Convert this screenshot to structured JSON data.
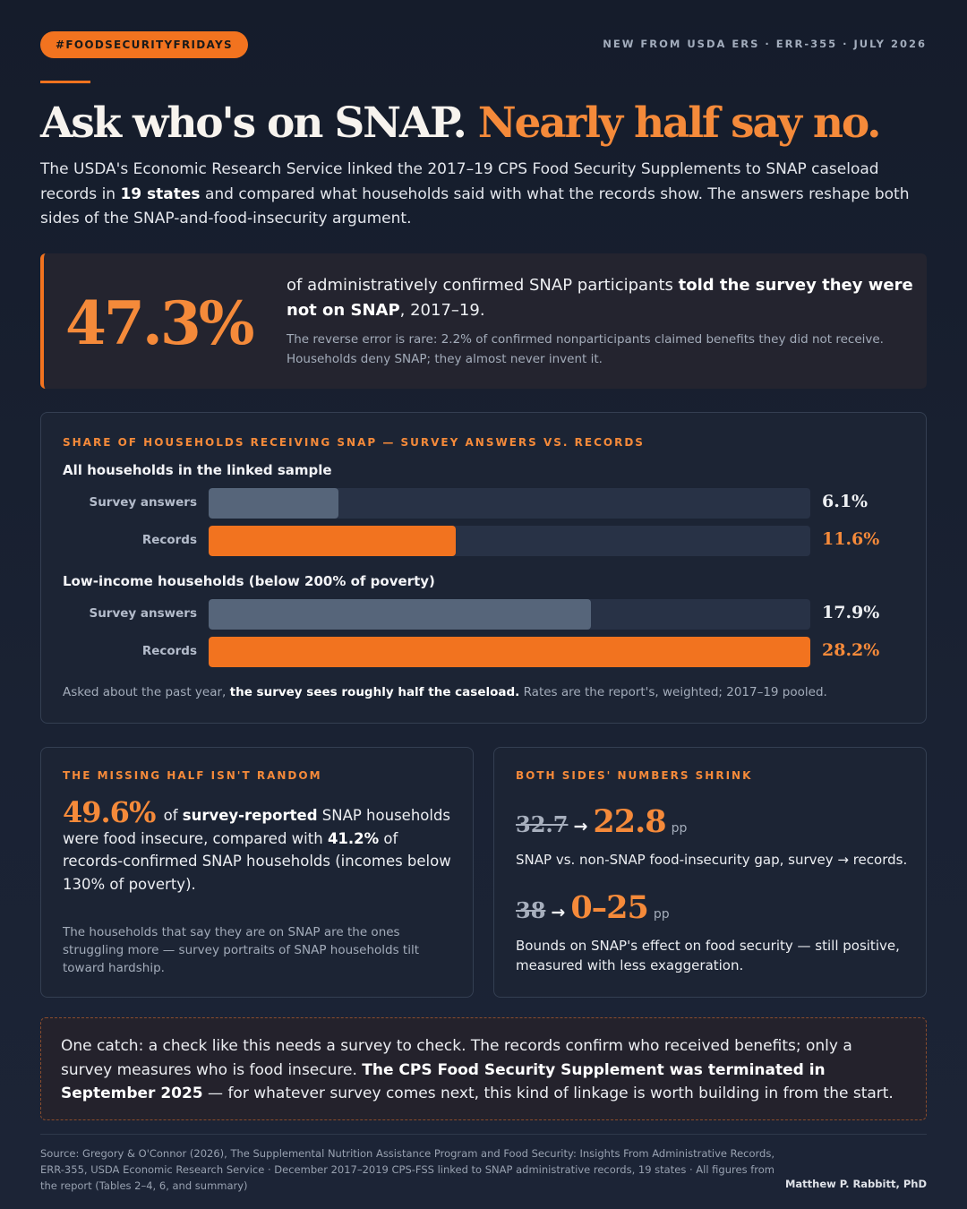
{
  "hashtag": "#FOODSECURITYFRIDAYS",
  "meta": "NEW FROM USDA ERS · ERR-355 · JULY 2026",
  "headline": {
    "part1": "Ask who's on SNAP.",
    "part2": "Nearly half say no."
  },
  "intro": {
    "t1": "The USDA's Economic Research Service linked the 2017–19 CPS Food Security Supplements to SNAP caseload records in ",
    "b1": "19 states",
    "t2": " and compared what households said with what the records show. The answers reshape both sides of the SNAP-and-food-insecurity argument."
  },
  "stat": {
    "value": "47.3%",
    "t1": "of administratively confirmed SNAP participants ",
    "b1": "told the survey they were not on SNAP",
    "t2": ", 2017–19.",
    "sub": "The reverse error is rare: 2.2% of confirmed nonparticipants claimed benefits they did not receive. Households deny SNAP; they almost never invent it."
  },
  "chart_data": {
    "type": "bar",
    "title": "SHARE OF HOUSEHOLDS RECEIVING SNAP — SURVEY ANSWERS VS. RECORDS",
    "orientation": "horizontal",
    "xlim": [
      0,
      28.2
    ],
    "groups": [
      {
        "title": "All households in the linked sample",
        "bars": [
          {
            "label": "Survey answers",
            "value": 6.1,
            "display": "6.1%",
            "kind": "survey"
          },
          {
            "label": "Records",
            "value": 11.6,
            "display": "11.6%",
            "kind": "records"
          }
        ]
      },
      {
        "title": "Low-income households (below 200% of poverty)",
        "bars": [
          {
            "label": "Survey answers",
            "value": 17.9,
            "display": "17.9%",
            "kind": "survey"
          },
          {
            "label": "Records",
            "value": 28.2,
            "display": "28.2%",
            "kind": "records"
          }
        ]
      }
    ],
    "colors": {
      "survey": "#56657a",
      "records": "#f2731f"
    },
    "note": {
      "t1": "Asked about the past year, ",
      "b1": "the survey sees roughly half the caseload.",
      "t2": " Rates are the report's, weighted; 2017–19 pooled."
    }
  },
  "missing": {
    "eyebrow": "THE MISSING HALF ISN'T RANDOM",
    "big": "49.6%",
    "t1": "of ",
    "b1": "survey-reported",
    "t2": " SNAP households were food insecure, compared with ",
    "b2": "41.2%",
    "t3": " of records-confirmed SNAP households (incomes below 130% of poverty).",
    "sub": "The households that say they are on SNAP are the ones struggling more — survey portraits of SNAP households tilt toward hardship."
  },
  "shrink": {
    "eyebrow": "BOTH SIDES' NUMBERS SHRINK",
    "rows": [
      {
        "old": "32.7",
        "arrow": "→",
        "new": "22.8",
        "unit": "pp",
        "desc": "SNAP vs. non-SNAP food-insecurity gap, survey → records."
      },
      {
        "old": "38",
        "arrow": "→",
        "new": "0–25",
        "unit": "pp",
        "desc": "Bounds on SNAP's effect on food security — still positive, measured with less exaggeration."
      }
    ]
  },
  "catch": {
    "t1": "One catch: a check like this needs a survey to check. The records confirm who received benefits; only a survey measures who is food insecure. ",
    "b1": "The CPS Food Security Supplement was terminated in September 2025",
    "t2": " — for whatever survey comes next, this kind of linkage is worth building in from the start."
  },
  "footer": {
    "source": "Source: Gregory & O'Connor (2026), The Supplemental Nutrition Assistance Program and Food Security: Insights From Administrative Records, ERR-355, USDA Economic Research Service · December 2017–2019 CPS-FSS linked to SNAP administrative records, 19 states · All figures from the report (Tables 2–4, 6, and summary)",
    "author": "Matthew P. Rabbitt, PhD"
  }
}
